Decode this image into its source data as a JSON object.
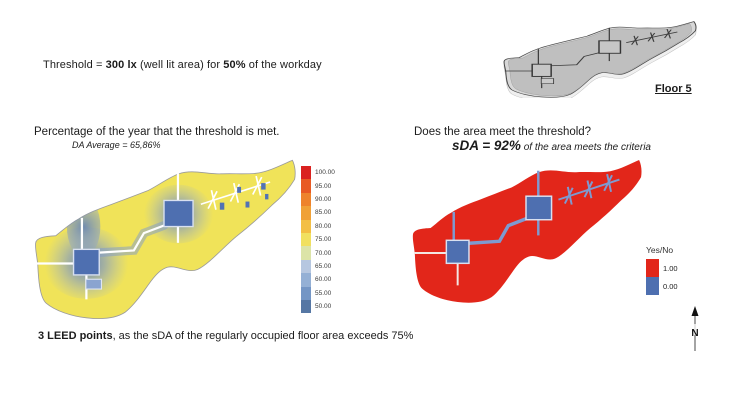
{
  "palette": {
    "red": "#e2261a",
    "blue-core": "#4e6fb0",
    "yellow": "#f0e359",
    "line-blue": "#7e9ad0",
    "halo-blue": "#d8e0f0"
  },
  "threshold_line": {
    "prefix": "Threshold = ",
    "lux": "300 lx",
    "middle": " (well lit area) for ",
    "percent": "50%",
    "suffix": " of the workday"
  },
  "reference_plan": {
    "label": "Floor 5"
  },
  "da_panel": {
    "title": "Percentage of the year that the threshold is met.",
    "subtitle": "DA Average = 65,86%"
  },
  "sda_panel": {
    "title": "Does the area meet the threshold?",
    "value": "sDA = 92%",
    "value_suffix": " of the area meets the criteria"
  },
  "leed_note": {
    "bold": "3 LEED points",
    "rest": ", as the sDA of the regularly occupied floor area exceeds 75%"
  },
  "compass": {
    "label": "N"
  },
  "chart_data": [
    {
      "type": "heatmap",
      "name": "daylight-autonomy-floor-map",
      "title": "Percentage of the year that the threshold is met.",
      "annotation": "DA Average = 65,86%",
      "units": "% of the year the 300 lx threshold is met",
      "floor": "Floor 5",
      "scale_min": 50,
      "scale_max": 100,
      "scale_step": 5,
      "legend_position": "right",
      "legend_labels": [
        "100.00",
        "95.00",
        "90.00",
        "85.00",
        "80.00",
        "75.00",
        "70.00",
        "65.00",
        "60.00",
        "55.00",
        "50.00"
      ],
      "legend_colors": [
        "#da2220",
        "#e85a24",
        "#ee832c",
        "#f0a137",
        "#f3bf45",
        "#f1e060",
        "#dce4a8",
        "#b6c7e0",
        "#94b0d5",
        "#7496c5",
        "#5677a4"
      ],
      "dominant_value_color": "#f0e359"
    },
    {
      "type": "heatmap",
      "name": "sda-threshold-pass-map",
      "title": "Does the area meet the threshold?",
      "annotation": "sDA = 92% of the area meets the criteria",
      "floor": "Floor 5",
      "legend_title": "Yes/No",
      "legend_labels": [
        "1.00",
        "0.00"
      ],
      "legend_colors": [
        "#e2261a",
        "#4e6fb0"
      ],
      "sda_percent": 92
    }
  ]
}
